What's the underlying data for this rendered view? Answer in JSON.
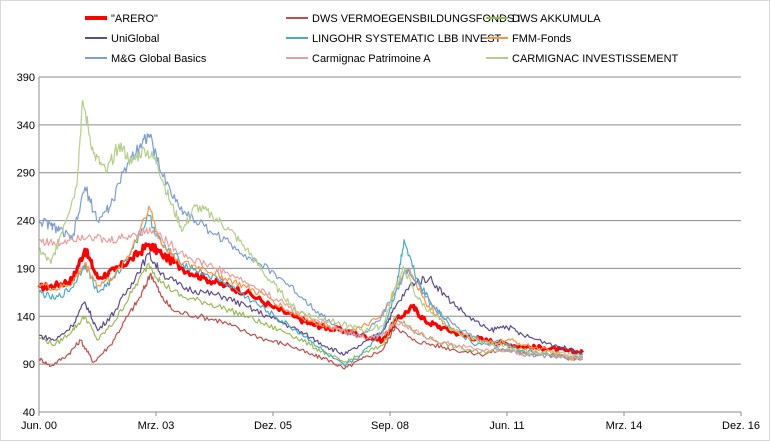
{
  "chart_data": {
    "type": "line",
    "title": "",
    "xlabel": "",
    "ylabel": "",
    "x_axis": {
      "min": 2000.42,
      "max": 2016.92,
      "ticks": [
        {
          "label": "Jun. 00",
          "value": 2000.42
        },
        {
          "label": "Mrz. 03",
          "value": 2003.17
        },
        {
          "label": "Dez. 05",
          "value": 2005.92
        },
        {
          "label": "Sep. 08",
          "value": 2008.67
        },
        {
          "label": "Jun. 11",
          "value": 2011.42
        },
        {
          "label": "Mrz. 14",
          "value": 2014.17
        },
        {
          "label": "Dez. 16",
          "value": 2016.92
        }
      ]
    },
    "y_axis": {
      "min": 40,
      "max": 390,
      "ticks": [
        40,
        90,
        140,
        190,
        240,
        290,
        340,
        390
      ],
      "gridlines": true
    },
    "legend_position": "top",
    "series": [
      {
        "name": "\"ARERO\"",
        "color": "#ff0000",
        "width": 3.2,
        "points": [
          [
            2000.42,
            170
          ],
          [
            2000.8,
            172
          ],
          [
            2001.2,
            178
          ],
          [
            2001.5,
            210
          ],
          [
            2001.8,
            180
          ],
          [
            2002.2,
            188
          ],
          [
            2002.6,
            200
          ],
          [
            2003.0,
            215
          ],
          [
            2003.3,
            205
          ],
          [
            2003.8,
            190
          ],
          [
            2004.3,
            180
          ],
          [
            2004.8,
            172
          ],
          [
            2005.3,
            165
          ],
          [
            2005.9,
            150
          ],
          [
            2006.4,
            140
          ],
          [
            2006.8,
            132
          ],
          [
            2007.2,
            128
          ],
          [
            2007.6,
            125
          ],
          [
            2008.0,
            120
          ],
          [
            2008.5,
            115
          ],
          [
            2008.8,
            135
          ],
          [
            2009.2,
            150
          ],
          [
            2009.5,
            135
          ],
          [
            2009.9,
            128
          ],
          [
            2010.4,
            120
          ],
          [
            2010.9,
            115
          ],
          [
            2011.3,
            112
          ],
          [
            2011.8,
            108
          ],
          [
            2012.3,
            107
          ],
          [
            2012.8,
            104
          ],
          [
            2013.2,
            102
          ]
        ]
      },
      {
        "name": "DWS VERMOEGENSBILDUNGSFONDS  I",
        "color": "#c0504d",
        "width": 1.2,
        "points": [
          [
            2000.42,
            96
          ],
          [
            2000.7,
            88
          ],
          [
            2001.1,
            100
          ],
          [
            2001.4,
            115
          ],
          [
            2001.7,
            92
          ],
          [
            2002.1,
            110
          ],
          [
            2002.5,
            140
          ],
          [
            2002.8,
            160
          ],
          [
            2003.05,
            185
          ],
          [
            2003.3,
            160
          ],
          [
            2003.6,
            145
          ],
          [
            2004.2,
            140
          ],
          [
            2004.7,
            135
          ],
          [
            2005.2,
            125
          ],
          [
            2005.8,
            115
          ],
          [
            2006.3,
            110
          ],
          [
            2006.8,
            100
          ],
          [
            2007.2,
            95
          ],
          [
            2007.6,
            85
          ],
          [
            2008.0,
            95
          ],
          [
            2008.5,
            105
          ],
          [
            2008.8,
            130
          ],
          [
            2009.2,
            115
          ],
          [
            2009.7,
            110
          ],
          [
            2010.2,
            105
          ],
          [
            2010.8,
            100
          ],
          [
            2011.3,
            105
          ],
          [
            2011.8,
            102
          ],
          [
            2012.4,
            100
          ],
          [
            2012.9,
            97
          ],
          [
            2013.2,
            96
          ]
        ]
      },
      {
        "name": "DWS AKKUMULA",
        "color": "#9bbb59",
        "width": 1.2,
        "points": [
          [
            2000.42,
            118
          ],
          [
            2000.8,
            110
          ],
          [
            2001.2,
            125
          ],
          [
            2001.5,
            140
          ],
          [
            2001.8,
            115
          ],
          [
            2002.2,
            135
          ],
          [
            2002.6,
            165
          ],
          [
            2003.0,
            195
          ],
          [
            2003.3,
            175
          ],
          [
            2003.8,
            160
          ],
          [
            2004.3,
            155
          ],
          [
            2004.8,
            148
          ],
          [
            2005.3,
            140
          ],
          [
            2005.8,
            130
          ],
          [
            2006.3,
            122
          ],
          [
            2006.8,
            110
          ],
          [
            2007.2,
            100
          ],
          [
            2007.6,
            92
          ],
          [
            2008.0,
            100
          ],
          [
            2008.5,
            110
          ],
          [
            2008.8,
            140
          ],
          [
            2009.2,
            125
          ],
          [
            2009.7,
            115
          ],
          [
            2010.2,
            108
          ],
          [
            2010.8,
            102
          ],
          [
            2011.3,
            106
          ],
          [
            2011.8,
            103
          ],
          [
            2012.4,
            100
          ],
          [
            2012.9,
            98
          ],
          [
            2013.2,
            97
          ]
        ]
      },
      {
        "name": "UniGlobal",
        "color": "#5f4b8b",
        "width": 1.2,
        "points": [
          [
            2000.42,
            120
          ],
          [
            2000.8,
            115
          ],
          [
            2001.2,
            130
          ],
          [
            2001.5,
            155
          ],
          [
            2001.8,
            125
          ],
          [
            2002.2,
            145
          ],
          [
            2002.6,
            175
          ],
          [
            2003.0,
            205
          ],
          [
            2003.3,
            185
          ],
          [
            2003.8,
            170
          ],
          [
            2004.3,
            165
          ],
          [
            2004.8,
            160
          ],
          [
            2005.3,
            150
          ],
          [
            2005.8,
            140
          ],
          [
            2006.3,
            130
          ],
          [
            2006.8,
            118
          ],
          [
            2007.2,
            108
          ],
          [
            2007.6,
            100
          ],
          [
            2008.0,
            110
          ],
          [
            2008.5,
            125
          ],
          [
            2008.8,
            150
          ],
          [
            2009.2,
            175
          ],
          [
            2009.6,
            180
          ],
          [
            2010.0,
            160
          ],
          [
            2010.5,
            140
          ],
          [
            2011.0,
            125
          ],
          [
            2011.4,
            130
          ],
          [
            2011.8,
            120
          ],
          [
            2012.4,
            112
          ],
          [
            2012.9,
            105
          ],
          [
            2013.2,
            100
          ]
        ]
      },
      {
        "name": "LINGOHR SYSTEMATIC  LBB INVEST",
        "color": "#4bacc6",
        "width": 1.2,
        "points": [
          [
            2000.42,
            165
          ],
          [
            2000.8,
            158
          ],
          [
            2001.2,
            170
          ],
          [
            2001.5,
            195
          ],
          [
            2001.8,
            165
          ],
          [
            2002.2,
            180
          ],
          [
            2002.6,
            210
          ],
          [
            2003.0,
            245
          ],
          [
            2003.3,
            215
          ],
          [
            2003.8,
            195
          ],
          [
            2004.3,
            185
          ],
          [
            2004.8,
            175
          ],
          [
            2005.3,
            160
          ],
          [
            2005.8,
            145
          ],
          [
            2006.3,
            130
          ],
          [
            2006.8,
            115
          ],
          [
            2007.2,
            100
          ],
          [
            2007.6,
            88
          ],
          [
            2008.0,
            100
          ],
          [
            2008.5,
            125
          ],
          [
            2008.8,
            165
          ],
          [
            2009.0,
            220
          ],
          [
            2009.3,
            180
          ],
          [
            2009.7,
            150
          ],
          [
            2010.2,
            125
          ],
          [
            2010.7,
            110
          ],
          [
            2011.2,
            115
          ],
          [
            2011.7,
            105
          ],
          [
            2012.3,
            100
          ],
          [
            2012.8,
            96
          ],
          [
            2013.2,
            95
          ]
        ]
      },
      {
        "name": "FMM-Fonds",
        "color": "#f79646",
        "width": 1.2,
        "points": [
          [
            2000.42,
            175
          ],
          [
            2000.8,
            168
          ],
          [
            2001.2,
            175
          ],
          [
            2001.5,
            195
          ],
          [
            2001.8,
            172
          ],
          [
            2002.2,
            182
          ],
          [
            2002.6,
            210
          ],
          [
            2003.0,
            255
          ],
          [
            2003.3,
            215
          ],
          [
            2003.8,
            195
          ],
          [
            2004.3,
            190
          ],
          [
            2004.8,
            180
          ],
          [
            2005.3,
            170
          ],
          [
            2005.8,
            160
          ],
          [
            2006.3,
            145
          ],
          [
            2006.8,
            135
          ],
          [
            2007.2,
            130
          ],
          [
            2007.6,
            125
          ],
          [
            2008.0,
            128
          ],
          [
            2008.5,
            140
          ],
          [
            2008.8,
            170
          ],
          [
            2009.1,
            190
          ],
          [
            2009.5,
            155
          ],
          [
            2010.0,
            130
          ],
          [
            2010.5,
            118
          ],
          [
            2011.0,
            112
          ],
          [
            2011.5,
            115
          ],
          [
            2012.0,
            108
          ],
          [
            2012.5,
            103
          ],
          [
            2012.9,
            95
          ],
          [
            2013.2,
            98
          ]
        ]
      },
      {
        "name": "M&G Global Basics",
        "color": "#7f9fcf",
        "width": 1.2,
        "points": [
          [
            2000.42,
            240
          ],
          [
            2000.7,
            235
          ],
          [
            2000.9,
            230
          ],
          [
            2001.2,
            220
          ],
          [
            2001.5,
            275
          ],
          [
            2001.8,
            240
          ],
          [
            2002.1,
            255
          ],
          [
            2002.5,
            300
          ],
          [
            2002.8,
            320
          ],
          [
            2003.0,
            330
          ],
          [
            2003.3,
            290
          ],
          [
            2003.7,
            255
          ],
          [
            2004.1,
            240
          ],
          [
            2004.6,
            225
          ],
          [
            2005.1,
            210
          ],
          [
            2005.6,
            195
          ],
          [
            2006.1,
            180
          ],
          [
            2006.6,
            160
          ],
          [
            2007.1,
            140
          ],
          [
            2007.5,
            125
          ],
          [
            2008.0,
            120
          ],
          [
            2008.4,
            135
          ],
          [
            2008.8,
            165
          ],
          [
            2009.1,
            190
          ],
          [
            2009.5,
            160
          ],
          [
            2009.9,
            140
          ],
          [
            2010.4,
            125
          ],
          [
            2010.9,
            112
          ],
          [
            2011.4,
            105
          ],
          [
            2011.9,
            100
          ],
          [
            2012.5,
            98
          ],
          [
            2013.2,
            98
          ]
        ]
      },
      {
        "name": "Carmignac Patrimoine A",
        "color": "#e6a0a0",
        "width": 1.2,
        "points": [
          [
            2000.42,
            220
          ],
          [
            2000.8,
            215
          ],
          [
            2001.2,
            222
          ],
          [
            2001.6,
            225
          ],
          [
            2002.0,
            218
          ],
          [
            2002.4,
            222
          ],
          [
            2002.8,
            228
          ],
          [
            2003.1,
            230
          ],
          [
            2003.5,
            215
          ],
          [
            2004.0,
            200
          ],
          [
            2004.5,
            192
          ],
          [
            2005.0,
            182
          ],
          [
            2005.5,
            170
          ],
          [
            2006.0,
            158
          ],
          [
            2006.5,
            145
          ],
          [
            2007.0,
            135
          ],
          [
            2007.5,
            125
          ],
          [
            2008.0,
            118
          ],
          [
            2008.5,
            120
          ],
          [
            2008.8,
            135
          ],
          [
            2009.2,
            125
          ],
          [
            2009.7,
            115
          ],
          [
            2010.2,
            110
          ],
          [
            2010.8,
            105
          ],
          [
            2011.3,
            103
          ],
          [
            2011.8,
            101
          ],
          [
            2012.4,
            100
          ],
          [
            2012.9,
            98
          ],
          [
            2013.2,
            97
          ]
        ]
      },
      {
        "name": "CARMIGNAC INVESTISSEMENT",
        "color": "#b3cf8a",
        "width": 1.2,
        "points": [
          [
            2000.42,
            210
          ],
          [
            2000.7,
            195
          ],
          [
            2001.0,
            235
          ],
          [
            2001.3,
            275
          ],
          [
            2001.45,
            365
          ],
          [
            2001.7,
            310
          ],
          [
            2002.0,
            290
          ],
          [
            2002.3,
            320
          ],
          [
            2002.6,
            300
          ],
          [
            2002.9,
            315
          ],
          [
            2003.2,
            300
          ],
          [
            2003.5,
            260
          ],
          [
            2003.8,
            230
          ],
          [
            2004.1,
            255
          ],
          [
            2004.5,
            245
          ],
          [
            2004.9,
            230
          ],
          [
            2005.3,
            210
          ],
          [
            2005.7,
            185
          ],
          [
            2006.1,
            165
          ],
          [
            2006.5,
            145
          ],
          [
            2006.9,
            140
          ],
          [
            2007.3,
            135
          ],
          [
            2007.7,
            130
          ],
          [
            2008.1,
            125
          ],
          [
            2008.5,
            130
          ],
          [
            2008.8,
            170
          ],
          [
            2009.0,
            190
          ],
          [
            2009.3,
            160
          ],
          [
            2009.7,
            140
          ],
          [
            2010.2,
            125
          ],
          [
            2010.7,
            115
          ],
          [
            2011.2,
            110
          ],
          [
            2011.7,
            105
          ],
          [
            2012.3,
            103
          ],
          [
            2012.8,
            100
          ],
          [
            2013.2,
            99
          ]
        ]
      }
    ]
  }
}
